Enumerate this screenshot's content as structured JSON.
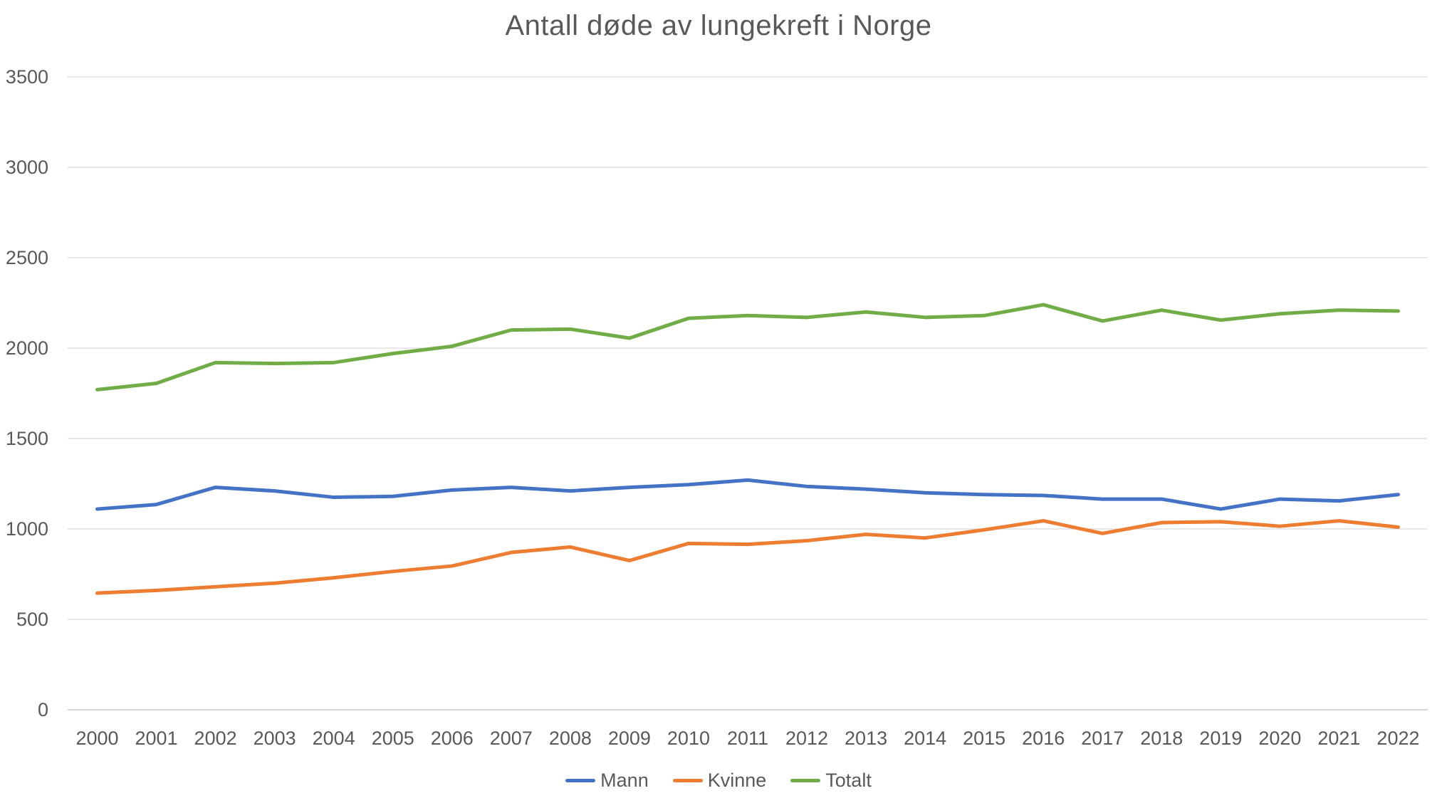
{
  "chart_data": {
    "type": "line",
    "title": "Antall døde av lungekreft i Norge",
    "categories": [
      2000,
      2001,
      2002,
      2003,
      2004,
      2005,
      2006,
      2007,
      2008,
      2009,
      2010,
      2011,
      2012,
      2013,
      2014,
      2015,
      2016,
      2017,
      2018,
      2019,
      2020,
      2021,
      2022
    ],
    "series": [
      {
        "name": "Mann",
        "color": "#4472C4",
        "values": [
          1110,
          1135,
          1230,
          1210,
          1175,
          1180,
          1215,
          1230,
          1210,
          1230,
          1245,
          1270,
          1235,
          1220,
          1200,
          1190,
          1185,
          1165,
          1165,
          1110,
          1165,
          1155,
          1190
        ]
      },
      {
        "name": "Kvinne",
        "color": "#ED7D31",
        "values": [
          645,
          660,
          680,
          700,
          730,
          765,
          795,
          870,
          900,
          825,
          920,
          915,
          935,
          970,
          950,
          995,
          1045,
          975,
          1035,
          1040,
          1015,
          1045,
          1010
        ]
      },
      {
        "name": "Totalt",
        "color": "#70AD47",
        "values": [
          1770,
          1805,
          1920,
          1915,
          1920,
          1970,
          2010,
          2100,
          2105,
          2055,
          2165,
          2180,
          2170,
          2200,
          2170,
          2180,
          2240,
          2150,
          2210,
          2155,
          2190,
          2210,
          2205
        ]
      }
    ],
    "xlabel": "",
    "ylabel": "",
    "ylim": [
      0,
      3500
    ],
    "yticks": [
      0,
      500,
      1000,
      1500,
      2000,
      2500,
      3000,
      3500
    ],
    "grid": true,
    "legend_position": "bottom"
  },
  "colors": {
    "title_text": "#595959",
    "axis_text": "#595959",
    "gridline": "#D9D9D9",
    "axis_line": "#BFBFBF",
    "background": "#FFFFFF",
    "series_mann": "#4472C4",
    "series_kvinne": "#ED7D31",
    "series_totalt": "#70AD47"
  }
}
